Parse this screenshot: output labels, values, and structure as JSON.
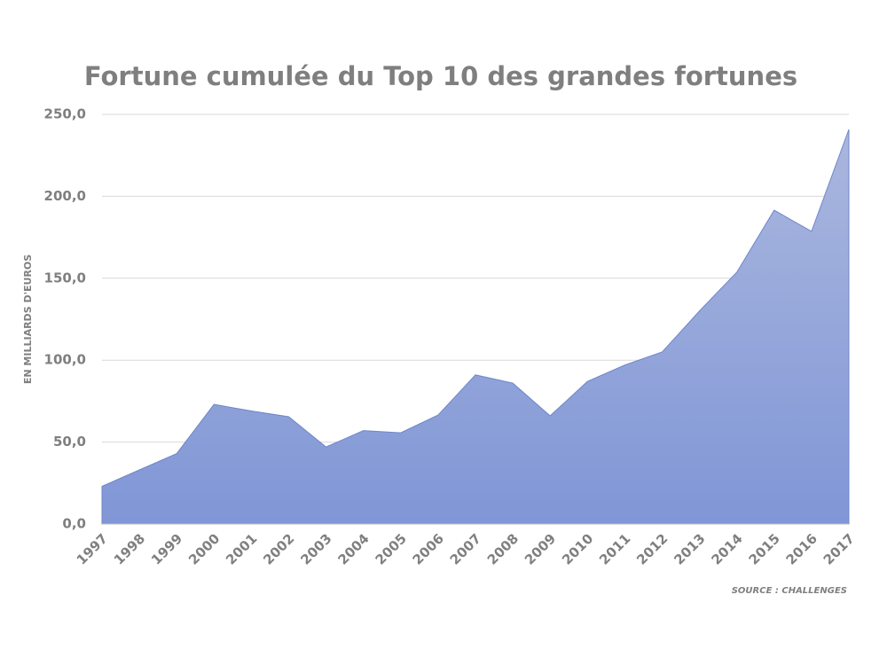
{
  "chart_data": {
    "type": "area",
    "title": "Fortune cumulée du Top 10 des grandes fortunes",
    "y_label": "EN MILLIARDS D'EUROS",
    "source": "SOURCE : CHALLENGES",
    "categories": [
      "1997",
      "1998",
      "1999",
      "2000",
      "2001",
      "2002",
      "2003",
      "2004",
      "2005",
      "2006",
      "2007",
      "2008",
      "2009",
      "2010",
      "2011",
      "2012",
      "2013",
      "2014",
      "2015",
      "2016",
      "2017"
    ],
    "values": [
      23,
      33,
      43,
      73,
      69,
      65.5,
      47,
      57,
      55.7,
      66.5,
      91,
      86,
      66,
      87,
      97,
      105,
      130,
      153.7,
      191.5,
      178.6,
      240.8
    ],
    "color": "#8096d6",
    "ylim": [
      0,
      250
    ],
    "yticks": [
      {
        "value": 0,
        "label": "0,0"
      },
      {
        "value": 50,
        "label": "50,0"
      },
      {
        "value": 100,
        "label": "100,0"
      },
      {
        "value": 150,
        "label": "150,0"
      },
      {
        "value": 200,
        "label": "200,0"
      },
      {
        "value": 250,
        "label": "250,0"
      }
    ],
    "grid": true
  }
}
